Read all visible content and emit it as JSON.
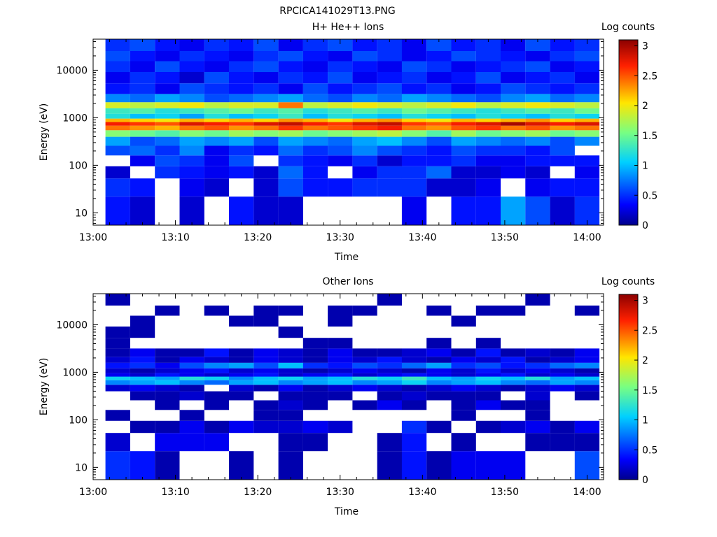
{
  "figure": {
    "title": "RPCICA141029T13.PNG"
  },
  "chart_data": [
    {
      "type": "heatmap",
      "title": "H+ He++ Ions",
      "xlabel": "Time",
      "ylabel": "Energy (eV)",
      "x_ticks": [
        "13:00",
        "13:10",
        "13:20",
        "13:30",
        "13:40",
        "13:50",
        "14:00"
      ],
      "x_range": [
        "13:00",
        "14:02"
      ],
      "y_scale": "log",
      "y_range": [
        5.5,
        45000
      ],
      "y_ticks": [
        "10",
        "100",
        "1000",
        "10000"
      ],
      "colorbar": {
        "label": "Log counts",
        "range": [
          0,
          3.1
        ],
        "ticks": [
          "0",
          "0.5",
          "1",
          "1.5",
          "2",
          "2.5",
          "3"
        ]
      },
      "time_bins": [
        "13:03",
        "13:06",
        "13:09",
        "13:12",
        "13:15",
        "13:18",
        "13:21",
        "13:24",
        "13:27",
        "13:30",
        "13:33",
        "13:36",
        "13:39",
        "13:42",
        "13:45",
        "13:48",
        "13:51",
        "13:54",
        "13:57",
        "14:00"
      ],
      "energy_bins": [
        12,
        40,
        70,
        130,
        200,
        330,
        480,
        620,
        750,
        880,
        1050,
        1400,
        1800,
        2500,
        4000,
        7000,
        12000,
        20000,
        32000
      ],
      "values": [
        [
          0.4,
          0.2,
          null,
          0.2,
          null,
          0.4,
          0.2,
          0.2,
          null,
          null,
          null,
          null,
          0.3,
          null,
          0.4,
          0.4,
          0.9,
          0.6,
          0.2,
          0.5
        ],
        [
          0.5,
          0.4,
          null,
          0.3,
          0.2,
          null,
          0.2,
          0.6,
          0.4,
          0.4,
          0.5,
          0.5,
          0.5,
          0.2,
          0.2,
          0.3,
          null,
          0.3,
          0.4,
          0.4
        ],
        [
          0.2,
          null,
          0.5,
          0.4,
          0.3,
          0.4,
          0.2,
          0.7,
          0.4,
          null,
          0.3,
          0.5,
          0.5,
          0.7,
          0.2,
          0.2,
          0.3,
          0.2,
          null,
          0.3
        ],
        [
          null,
          0.3,
          0.6,
          0.5,
          0.3,
          0.6,
          null,
          0.5,
          0.4,
          0.3,
          0.5,
          0.2,
          0.4,
          0.4,
          0.5,
          0.3,
          0.3,
          0.4,
          0.4,
          0.4
        ],
        [
          0.6,
          0.7,
          0.5,
          0.8,
          0.3,
          0.5,
          0.4,
          0.7,
          0.5,
          0.6,
          0.8,
          0.6,
          0.5,
          0.4,
          0.6,
          0.5,
          0.5,
          0.4,
          0.6,
          null
        ],
        [
          0.9,
          0.6,
          0.7,
          0.9,
          0.8,
          0.9,
          0.6,
          0.9,
          0.8,
          0.7,
          0.9,
          1.0,
          0.8,
          0.6,
          0.9,
          0.8,
          0.7,
          0.8,
          0.6,
          0.8
        ],
        [
          1.6,
          1.5,
          1.4,
          1.6,
          1.5,
          1.7,
          1.6,
          1.7,
          1.5,
          1.6,
          1.7,
          1.8,
          1.6,
          1.4,
          1.7,
          1.5,
          1.6,
          1.7,
          1.5,
          1.6
        ],
        [
          2.4,
          2.3,
          2.2,
          2.4,
          2.5,
          2.3,
          2.4,
          2.6,
          2.4,
          2.5,
          2.6,
          2.7,
          2.4,
          2.3,
          2.5,
          2.6,
          2.4,
          2.5,
          2.3,
          2.4
        ],
        [
          2.7,
          2.6,
          2.5,
          2.8,
          2.7,
          2.6,
          2.8,
          2.9,
          2.7,
          2.6,
          2.8,
          2.9,
          2.6,
          2.5,
          2.7,
          2.8,
          3.0,
          2.8,
          2.7,
          2.8
        ],
        [
          2.2,
          2.1,
          2.0,
          2.2,
          2.1,
          2.2,
          2.1,
          2.3,
          2.2,
          2.0,
          2.2,
          2.3,
          2.1,
          2.0,
          2.2,
          2.1,
          2.2,
          2.3,
          2.1,
          2.2
        ],
        [
          1.2,
          1.0,
          1.1,
          0.9,
          1.2,
          1.0,
          1.1,
          1.3,
          1.0,
          1.2,
          1.1,
          1.0,
          1.2,
          1.1,
          1.0,
          1.2,
          1.1,
          1.0,
          1.2,
          1.1
        ],
        [
          1.3,
          1.4,
          1.2,
          1.3,
          1.4,
          1.5,
          1.3,
          1.4,
          1.2,
          1.3,
          1.4,
          1.3,
          1.5,
          1.4,
          1.3,
          1.2,
          1.3,
          1.4,
          1.3,
          1.5
        ],
        [
          1.9,
          1.8,
          1.9,
          2.0,
          1.8,
          1.9,
          1.9,
          2.4,
          1.8,
          1.9,
          2.0,
          1.9,
          1.8,
          1.9,
          2.0,
          1.8,
          1.9,
          2.0,
          1.9,
          1.8
        ],
        [
          0.8,
          0.7,
          0.9,
          0.8,
          0.6,
          0.7,
          0.8,
          0.9,
          0.7,
          0.6,
          0.8,
          0.7,
          0.9,
          0.8,
          0.7,
          0.6,
          0.8,
          0.9,
          0.7,
          0.8
        ],
        [
          0.4,
          0.5,
          0.3,
          0.6,
          0.5,
          0.4,
          0.5,
          0.3,
          0.6,
          0.4,
          0.5,
          0.6,
          0.4,
          0.5,
          0.3,
          0.4,
          0.6,
          0.5,
          0.4,
          0.5
        ],
        [
          0.3,
          0.5,
          0.4,
          0.2,
          0.6,
          0.4,
          0.3,
          0.5,
          0.4,
          0.6,
          0.3,
          0.4,
          0.5,
          0.3,
          0.4,
          0.6,
          0.3,
          0.4,
          0.5,
          0.3
        ],
        [
          0.5,
          0.3,
          0.6,
          0.4,
          0.3,
          0.5,
          0.6,
          0.4,
          0.3,
          0.5,
          0.4,
          0.3,
          0.6,
          0.5,
          0.3,
          0.4,
          0.5,
          0.6,
          0.3,
          0.4
        ],
        [
          0.6,
          0.4,
          0.3,
          0.5,
          0.4,
          0.3,
          0.5,
          0.6,
          0.4,
          0.3,
          0.6,
          0.5,
          0.3,
          0.4,
          0.6,
          0.5,
          0.4,
          0.3,
          0.5,
          0.6
        ],
        [
          0.5,
          0.6,
          0.4,
          0.3,
          0.5,
          0.4,
          0.6,
          0.3,
          0.5,
          0.6,
          0.4,
          0.5,
          0.3,
          0.6,
          0.4,
          0.5,
          0.3,
          0.6,
          0.4,
          0.5
        ]
      ]
    },
    {
      "type": "heatmap",
      "title": "Other Ions",
      "xlabel": "Time",
      "ylabel": "Energy (eV)",
      "x_ticks": [
        "13:00",
        "13:10",
        "13:20",
        "13:30",
        "13:40",
        "13:50",
        "14:00"
      ],
      "x_range": [
        "13:00",
        "14:02"
      ],
      "y_scale": "log",
      "y_range": [
        5.5,
        45000
      ],
      "y_ticks": [
        "10",
        "100",
        "1000",
        "10000"
      ],
      "colorbar": {
        "label": "Log counts",
        "range": [
          0,
          3.1
        ],
        "ticks": [
          "0",
          "0.5",
          "1",
          "1.5",
          "2",
          "2.5",
          "3"
        ]
      },
      "time_bins": [
        "13:03",
        "13:06",
        "13:09",
        "13:12",
        "13:15",
        "13:18",
        "13:21",
        "13:24",
        "13:27",
        "13:30",
        "13:33",
        "13:36",
        "13:39",
        "13:42",
        "13:45",
        "13:48",
        "13:51",
        "13:54",
        "13:57",
        "14:00"
      ],
      "energy_bins": [
        12,
        40,
        70,
        130,
        200,
        330,
        480,
        620,
        750,
        880,
        1050,
        1400,
        1800,
        2500,
        4000,
        7000,
        12000,
        20000,
        32000
      ],
      "values": [
        [
          0.5,
          0.4,
          0.1,
          null,
          null,
          0.1,
          null,
          0.1,
          null,
          null,
          null,
          0.1,
          0.4,
          0.1,
          0.3,
          0.3,
          0.3,
          null,
          null,
          0.6
        ],
        [
          0.2,
          null,
          0.3,
          0.3,
          0.3,
          null,
          null,
          0.1,
          0.1,
          null,
          null,
          0.1,
          0.4,
          null,
          0.1,
          null,
          null,
          0.1,
          0.1,
          0.1
        ],
        [
          null,
          0.1,
          0.1,
          0.3,
          0.1,
          0.3,
          0.2,
          0.2,
          0.3,
          0.2,
          null,
          null,
          0.5,
          0.1,
          null,
          0.1,
          0.2,
          0.3,
          0.1,
          0.3
        ],
        [
          0.1,
          null,
          null,
          0.1,
          null,
          null,
          0.1,
          0.1,
          null,
          null,
          null,
          null,
          null,
          null,
          0.1,
          null,
          null,
          0.1,
          null,
          null
        ],
        [
          null,
          null,
          0.1,
          null,
          0.1,
          null,
          0.1,
          0.2,
          0.1,
          null,
          0.1,
          0.3,
          0.1,
          null,
          0.1,
          0.3,
          0.1,
          0.1,
          null,
          null
        ],
        [
          null,
          0.1,
          0.1,
          0.2,
          0.1,
          0.1,
          null,
          0.1,
          0.1,
          0.1,
          null,
          0.1,
          0.2,
          0.1,
          0.1,
          0.1,
          null,
          0.2,
          null,
          0.1
        ],
        [
          0.2,
          0.3,
          0.2,
          0.1,
          null,
          0.2,
          0.1,
          0.3,
          0.1,
          0.2,
          0.3,
          0.2,
          0.1,
          0.2,
          0.3,
          0.2,
          0.1,
          0.2,
          0.3,
          0.2
        ],
        [
          0.8,
          0.9,
          1.0,
          0.8,
          0.7,
          0.9,
          1.0,
          0.8,
          0.9,
          1.0,
          0.8,
          0.9,
          1.1,
          0.8,
          0.9,
          1.0,
          0.8,
          0.7,
          0.9,
          0.8
        ],
        [
          1.1,
          1.0,
          0.9,
          1.2,
          1.1,
          0.8,
          1.0,
          1.1,
          0.9,
          1.0,
          1.2,
          1.1,
          1.3,
          1.0,
          0.9,
          1.1,
          1.0,
          1.2,
          0.9,
          1.0
        ],
        [
          0.3,
          0.2,
          0.4,
          0.3,
          0.2,
          0.3,
          0.4,
          0.2,
          0.3,
          0.4,
          0.2,
          0.3,
          0.4,
          0.3,
          0.2,
          0.3,
          0.4,
          0.2,
          0.3,
          0.2
        ],
        [
          0.2,
          0.1,
          0.2,
          0.3,
          0.4,
          0.2,
          0.3,
          0.2,
          0.1,
          0.2,
          0.3,
          0.2,
          0.1,
          0.3,
          0.2,
          0.4,
          0.2,
          0.3,
          0.2,
          0.1
        ],
        [
          0.4,
          0.5,
          0.3,
          0.6,
          0.8,
          0.9,
          0.6,
          1.0,
          0.5,
          0.4,
          0.6,
          0.5,
          0.7,
          0.9,
          0.5,
          0.6,
          0.4,
          0.5,
          0.7,
          0.8
        ],
        [
          0.2,
          0.4,
          0.1,
          0.3,
          0.2,
          0.1,
          0.3,
          0.2,
          0.1,
          0.3,
          0.2,
          0.4,
          0.2,
          0.1,
          0.3,
          0.2,
          0.4,
          0.1,
          0.2,
          0.3
        ],
        [
          0.1,
          0.3,
          0.1,
          0.1,
          0.4,
          0.1,
          0.3,
          0.2,
          0.1,
          0.3,
          0.1,
          0.1,
          0.2,
          0.3,
          0.1,
          0.4,
          0.1,
          0.2,
          0.1,
          0.3
        ],
        [
          0.1,
          null,
          null,
          null,
          null,
          null,
          null,
          null,
          0.1,
          0.1,
          null,
          null,
          null,
          0.1,
          null,
          0.1,
          null,
          null,
          null,
          null
        ],
        [
          0.1,
          0.1,
          null,
          null,
          null,
          null,
          null,
          0.1,
          null,
          null,
          null,
          null,
          null,
          null,
          null,
          null,
          null,
          null,
          null,
          null
        ],
        [
          null,
          0.1,
          null,
          null,
          null,
          0.1,
          0.1,
          null,
          null,
          0.1,
          null,
          null,
          null,
          null,
          0.1,
          null,
          null,
          null,
          null,
          null
        ],
        [
          null,
          null,
          0.1,
          null,
          0.1,
          null,
          0.1,
          0.1,
          null,
          0.1,
          0.1,
          null,
          null,
          0.1,
          null,
          0.1,
          0.1,
          null,
          null,
          0.1
        ],
        [
          0.1,
          null,
          null,
          null,
          null,
          null,
          null,
          null,
          null,
          null,
          null,
          0.1,
          null,
          null,
          null,
          null,
          null,
          0.1,
          null,
          null
        ]
      ]
    }
  ]
}
